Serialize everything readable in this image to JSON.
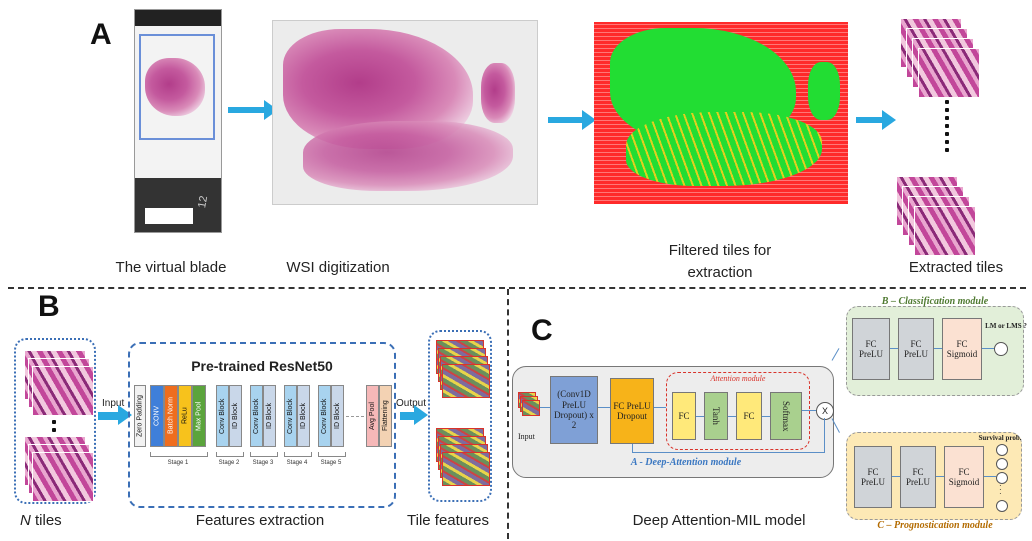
{
  "panel_a": {
    "label": "A",
    "captions": {
      "virtual_blade": "The virtual blade",
      "wsi": "WSI digitization",
      "filtered": "Filtered tiles for extraction",
      "extracted": "Extracted tiles"
    },
    "slide_mark": "12"
  },
  "panel_b": {
    "label": "B",
    "input_label": "Input",
    "output_label": "Output",
    "resnet_title": "Pre-trained ResNet50",
    "blocks": [
      "Zero Padding",
      "CONV",
      "Batch Norm",
      "ReLu",
      "Max Pool",
      "Conv Block",
      "ID Block",
      "Conv Block",
      "ID Block",
      "Conv Block",
      "ID Block",
      "Conv Block",
      "ID Block",
      "Avg Pool",
      "Flattening"
    ],
    "stages": [
      "Stage 1",
      "Stage 2",
      "Stage 3",
      "Stage 4",
      "Stage 5"
    ],
    "captions": {
      "n_tiles": "N",
      "n_tiles_suffix": " tiles",
      "features": "Features extraction",
      "tile_features": "Tile features"
    }
  },
  "panel_c": {
    "label": "C",
    "input_label": "Input",
    "conv_block": "(Conv1D PreLU Dropout) x 2",
    "fc_block": "FC PreLU Dropout",
    "attention_title": "Attention module",
    "attention_blocks": [
      "FC",
      "Tanh",
      "FC",
      "Softmax"
    ],
    "multiply": "X",
    "deep_attention_title": "A - Deep-Attention module",
    "classification_title": "B – Classification module",
    "classification_blocks": [
      "FC PreLU",
      "FC PreLU",
      "FC Sigmoid"
    ],
    "classification_output": "LM or LMS ?",
    "prognostication_title": "C – Prognostication module",
    "prognostication_blocks": [
      "FC PreLU",
      "FC PreLU",
      "FC Sigmoid"
    ],
    "survival_label": "Survival prob.",
    "caption": "Deep Attention-MIL model",
    "colors": {
      "blue_block": "#7fa0d6",
      "orange_block": "#f7b319",
      "yellow_block": "#ffe97a",
      "green_block": "#a9d08e",
      "green_panel": "#e2efd9",
      "orange_panel": "#fde9b5"
    }
  }
}
